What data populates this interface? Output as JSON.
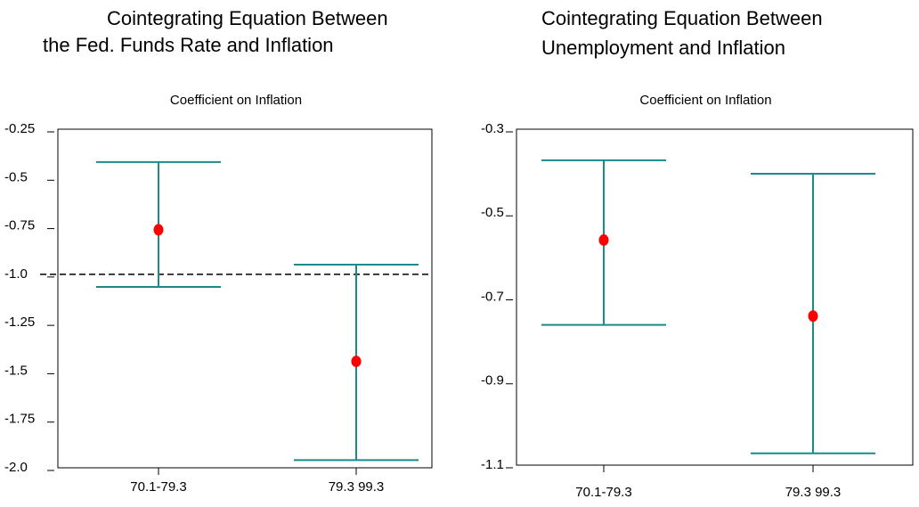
{
  "chart_data": [
    {
      "type": "errorbar",
      "title": [
        "Cointegrating Equation Between",
        "the Fed. Funds Rate and Inflation"
      ],
      "subtitle": "Coefficient on Inflation",
      "categories": [
        "70.1-79.3",
        "79.3 99.3"
      ],
      "values": [
        -0.77,
        -1.45
      ],
      "upper": [
        -0.42,
        -0.95
      ],
      "lower": [
        -1.065,
        -1.96
      ],
      "bar_color": "#1a8a8a",
      "point_color": "#ff0000",
      "reference_line": -1.0,
      "ylim": [
        -2.0,
        -0.25
      ],
      "yticks": [
        {
          "value": -2.0,
          "label": "-2.0"
        },
        -1.75,
        -1.5,
        -1.25,
        {
          "value": -1.0,
          "label": "-1.0"
        },
        -0.75,
        -0.5,
        -0.25
      ]
    },
    {
      "type": "errorbar",
      "title": [
        "Cointegrating Equation Between",
        "Unemployment and Inflation"
      ],
      "subtitle": "Coefficient on Inflation",
      "categories": [
        "70.1-79.3",
        "79.3 99.3"
      ],
      "values": [
        -0.564,
        -0.745
      ],
      "upper": [
        -0.374,
        -0.406
      ],
      "lower": [
        -0.766,
        -1.072
      ],
      "bar_color": "#1a8a8a",
      "point_color": "#ff0000",
      "ylim": [
        -1.1,
        -0.3
      ],
      "yticks": [
        -1.1,
        -0.9,
        -0.7,
        -0.5,
        -0.3
      ]
    }
  ]
}
